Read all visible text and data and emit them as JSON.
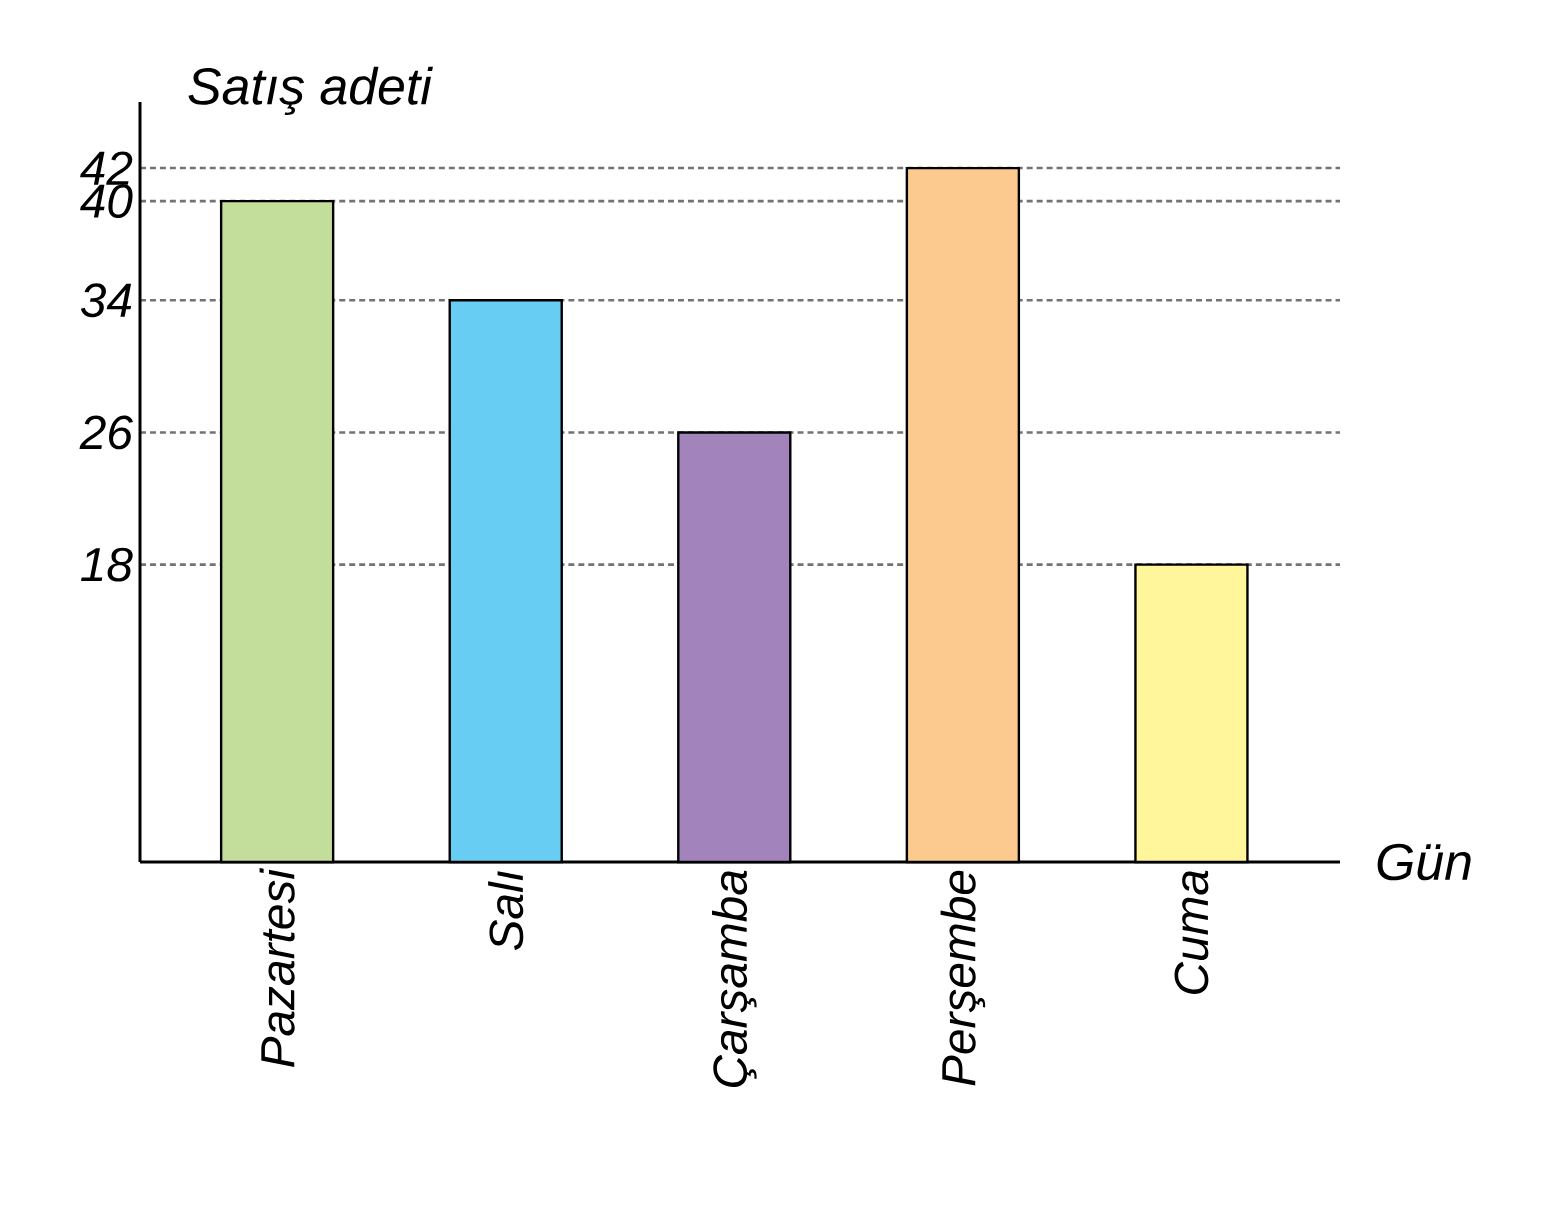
{
  "chart_data": {
    "type": "bar",
    "xlabel": "Gün",
    "ylabel": "Satış adeti",
    "categories": [
      "Pazartesi",
      "Salı",
      "Çarşamba",
      "Perşembe",
      "Cuma"
    ],
    "values": [
      40,
      34,
      26,
      42,
      18
    ],
    "colors": [
      "#c3de9b",
      "#67cdf2",
      "#a283bb",
      "#fcc98e",
      "#fff59a"
    ],
    "ylim": [
      0,
      46
    ],
    "yticks": [
      18,
      26,
      34,
      40,
      42
    ],
    "grid": "y"
  }
}
